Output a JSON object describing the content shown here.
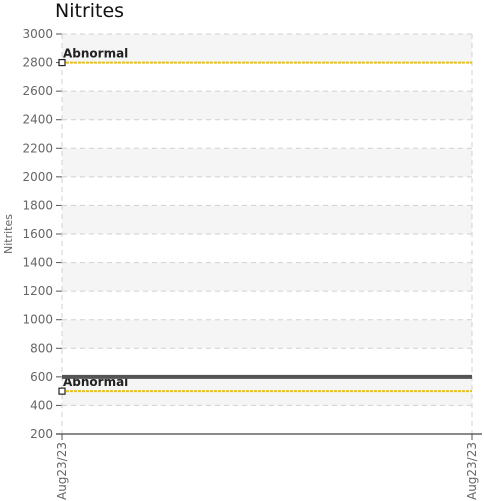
{
  "chart_data": {
    "type": "line",
    "title": "Nitrites",
    "xlabel": "",
    "ylabel": "Nitrites",
    "x_ticks": [
      "Aug23/23",
      "Aug23/23"
    ],
    "ylim": [
      200,
      3000
    ],
    "y_ticks": [
      200,
      400,
      600,
      800,
      1000,
      1200,
      1400,
      1600,
      1800,
      2000,
      2200,
      2400,
      2600,
      2800,
      3000
    ],
    "grid": true,
    "series": [
      {
        "values": [
          600,
          600
        ],
        "color": "#555555"
      }
    ],
    "threshold_lines": [
      {
        "label": "Abnormal",
        "value": 2800,
        "color": "#f2c200"
      },
      {
        "label": "Abnormal",
        "value": 500,
        "color": "#f2c200"
      }
    ]
  }
}
